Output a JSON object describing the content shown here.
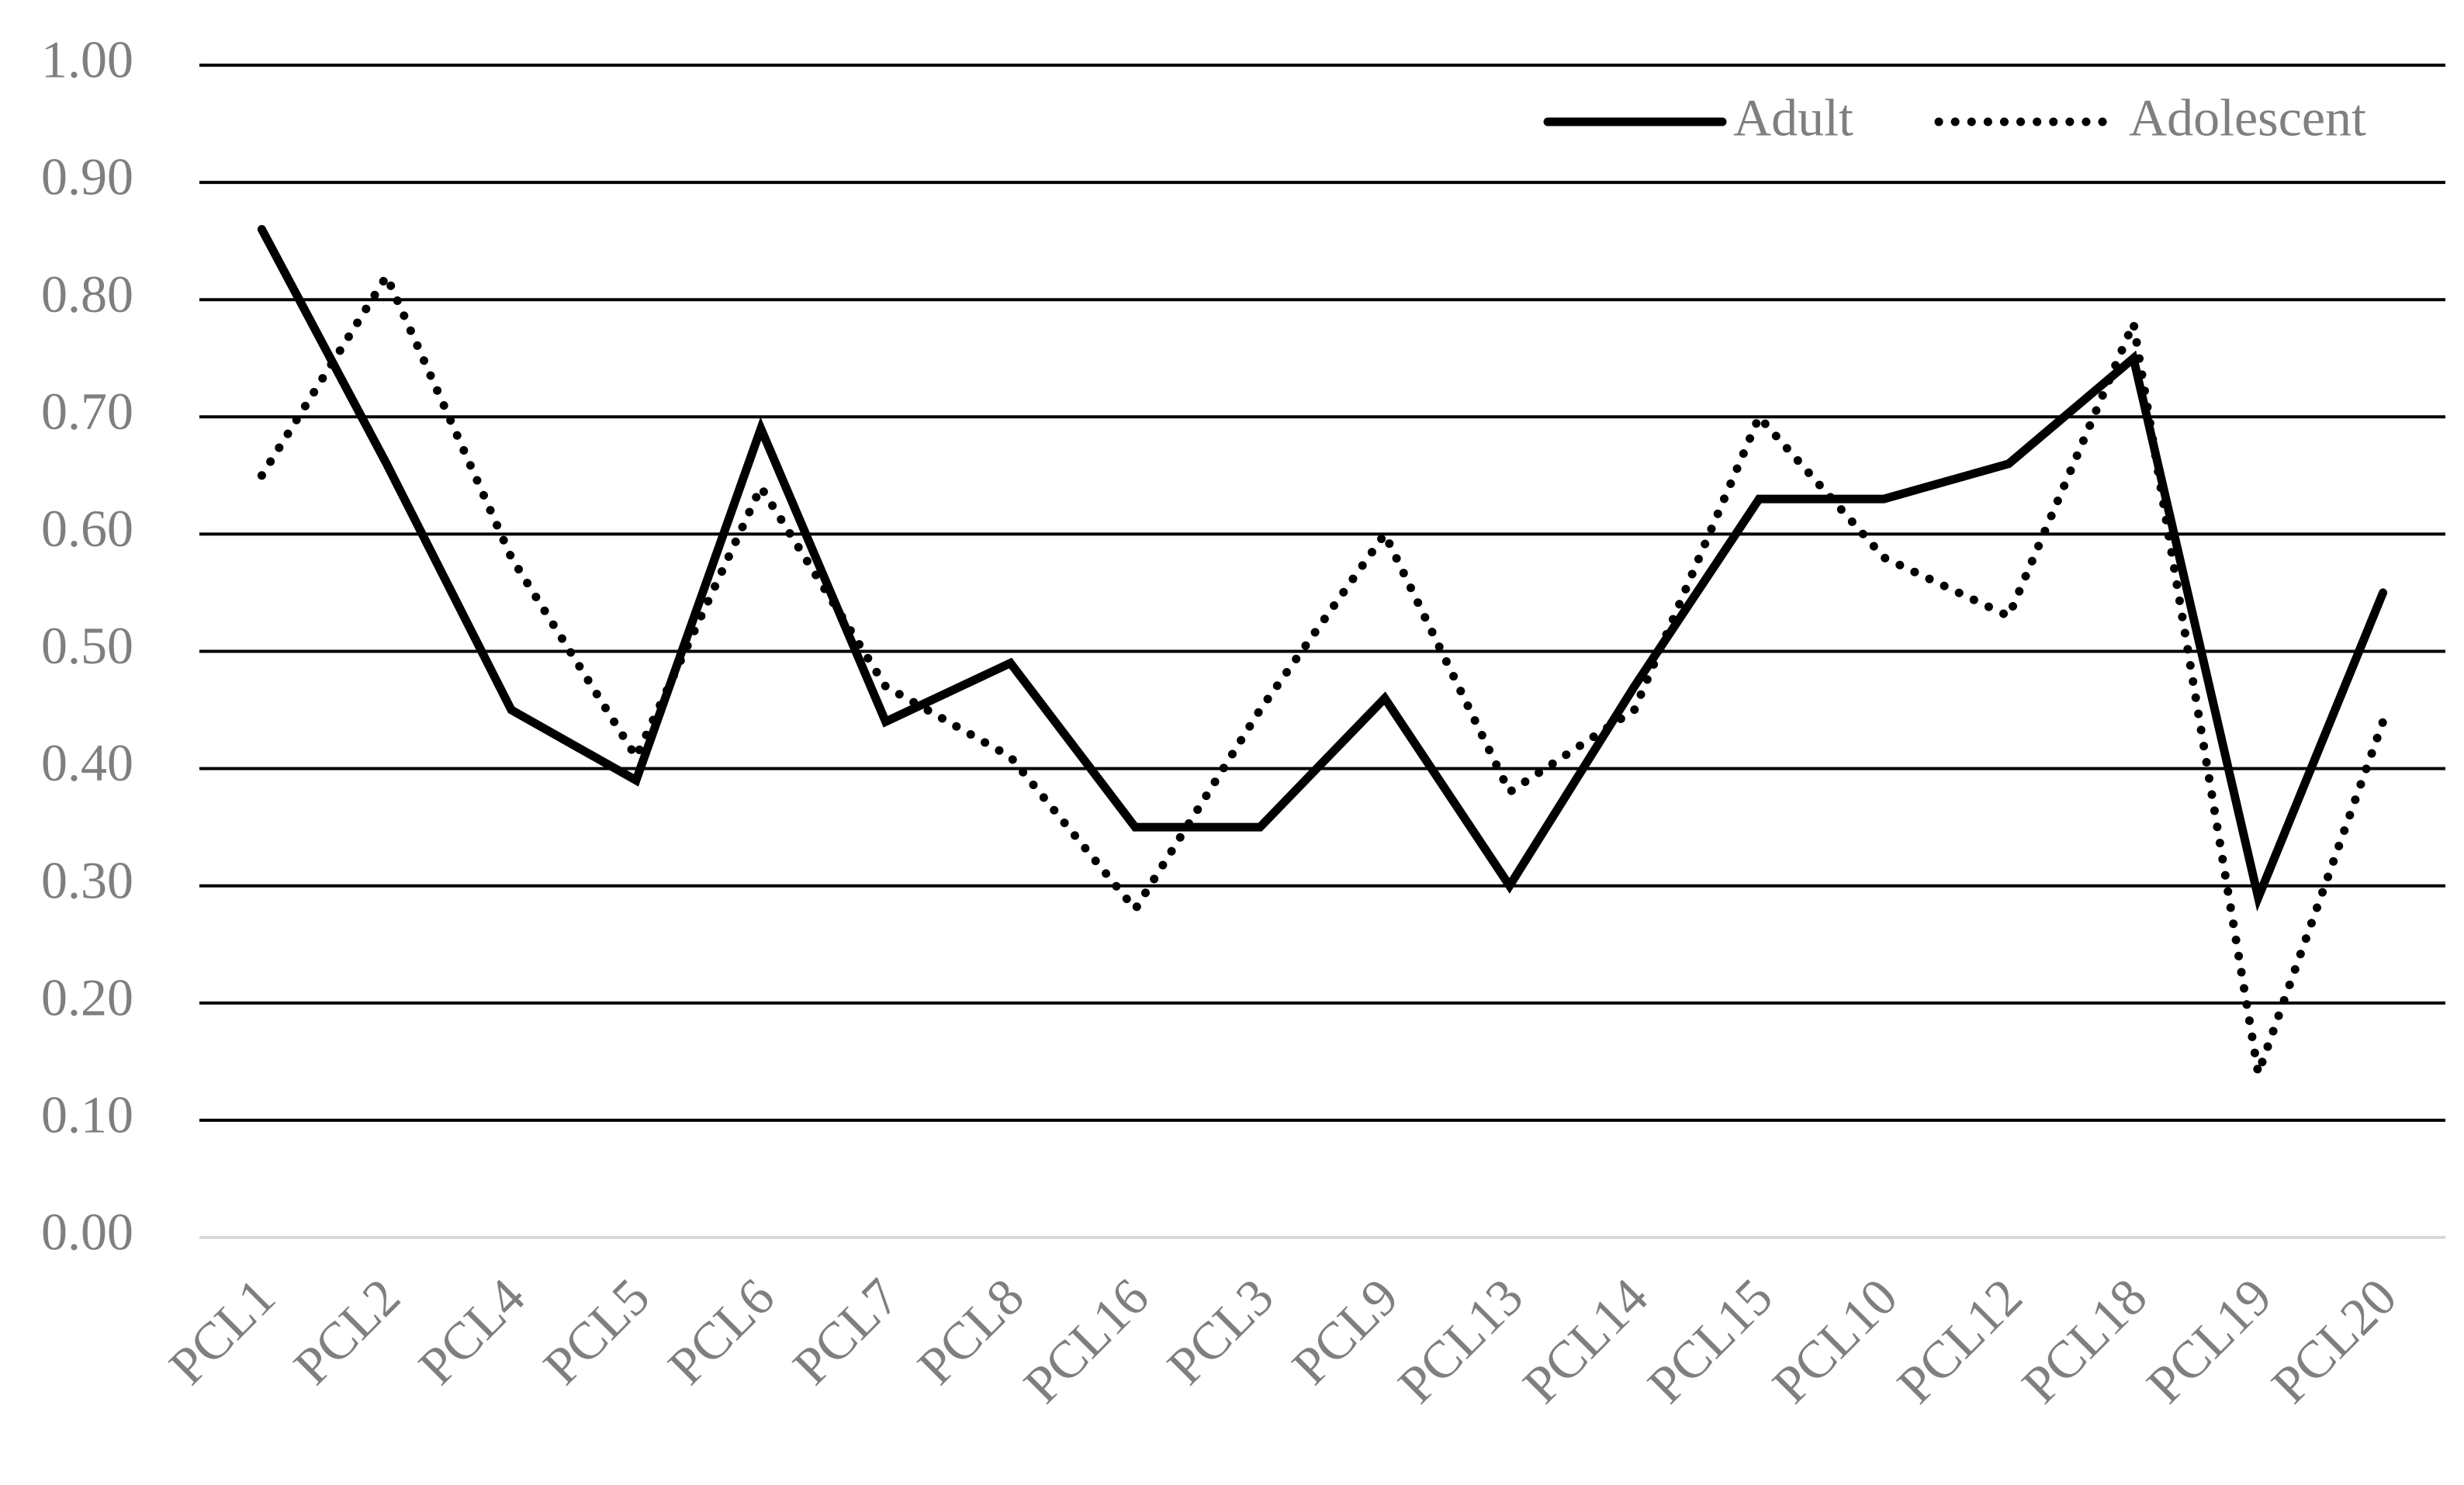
{
  "chart_data": {
    "type": "line",
    "categories": [
      "PCL1",
      "PCL2",
      "PCL4",
      "PCL5",
      "PCL6",
      "PCL7",
      "PCL8",
      "PCL16",
      "PCL3",
      "PCL9",
      "PCL13",
      "PCL14",
      "PCL15",
      "PCL10",
      "PCL12",
      "PCL18",
      "PCL19",
      "PCL20"
    ],
    "series": [
      {
        "name": "Adult",
        "color": "#000000",
        "style": "solid",
        "values": [
          0.86,
          0.66,
          0.45,
          0.39,
          0.69,
          0.44,
          0.49,
          0.35,
          0.35,
          0.46,
          0.3,
          0.47,
          0.63,
          0.63,
          0.66,
          0.75,
          0.29,
          0.55
        ]
      },
      {
        "name": "Adolescent",
        "color": "#000000",
        "style": "dotted",
        "values": [
          0.65,
          0.82,
          0.58,
          0.41,
          0.64,
          0.47,
          0.41,
          0.28,
          0.45,
          0.6,
          0.38,
          0.45,
          0.7,
          0.58,
          0.53,
          0.78,
          0.14,
          0.44
        ]
      }
    ],
    "ylim": [
      0,
      1
    ],
    "yticks": [
      {
        "value": 0,
        "label": "0.00"
      },
      {
        "value": 0.1,
        "label": "0.10"
      },
      {
        "value": 0.2,
        "label": "0.20"
      },
      {
        "value": 0.3,
        "label": "0.30"
      },
      {
        "value": 0.4,
        "label": "0.40"
      },
      {
        "value": 0.5,
        "label": "0.50"
      },
      {
        "value": 0.6,
        "label": "0.60"
      },
      {
        "value": 0.7,
        "label": "0.70"
      },
      {
        "value": 0.8,
        "label": "0.80"
      },
      {
        "value": 0.9,
        "label": "0.90"
      },
      {
        "value": 1,
        "label": "1.00"
      }
    ],
    "grid": true,
    "legend": "top-right"
  }
}
